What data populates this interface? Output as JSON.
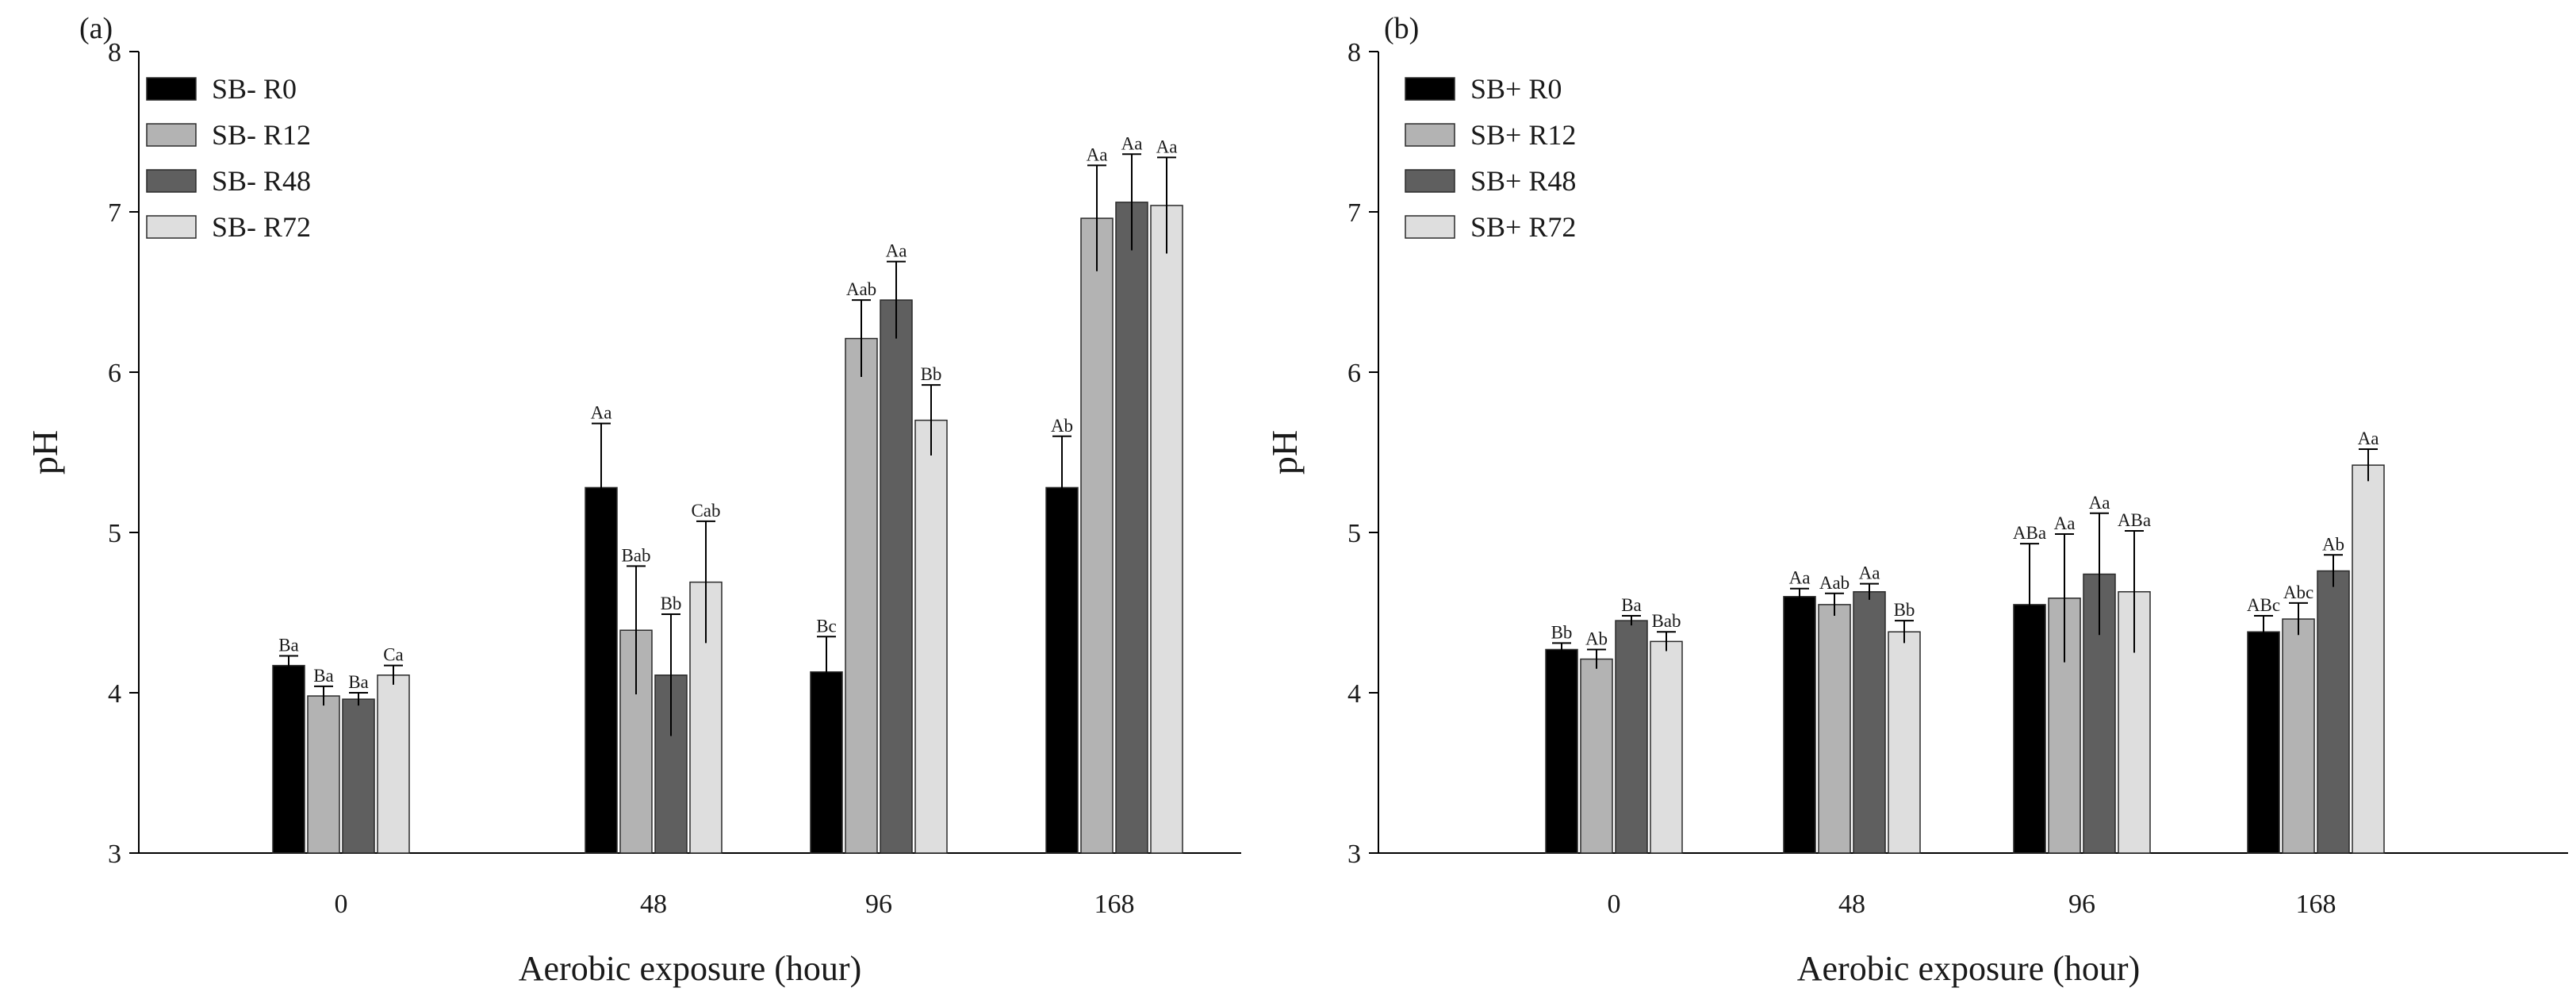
{
  "chart_data": [
    {
      "type": "bar",
      "panel_label": "(a)",
      "xlabel": "Aerobic exposure (hour)",
      "ylabel": "pH",
      "ylim": [
        3,
        8
      ],
      "yticks": [
        "3",
        "4",
        "5",
        "6",
        "7",
        "8"
      ],
      "categories": [
        "0",
        "48",
        "96",
        "168"
      ],
      "legend_position": "top-left",
      "series": [
        {
          "name": "SB- R0",
          "color": "#000000",
          "values": [
            4.17,
            5.28,
            4.13,
            5.28
          ],
          "errors": [
            0.06,
            0.4,
            0.22,
            0.32
          ],
          "labels": [
            "Ba",
            "Aa",
            "Bc",
            "Ab"
          ]
        },
        {
          "name": "SB- R12",
          "color": "#b3b3b3",
          "values": [
            3.98,
            4.39,
            6.21,
            6.96
          ],
          "errors": [
            0.06,
            0.4,
            0.24,
            0.33
          ],
          "labels": [
            "Ba",
            "Bab",
            "Aab",
            "Aa"
          ]
        },
        {
          "name": "SB- R48",
          "color": "#5f5f5f",
          "values": [
            3.96,
            4.11,
            6.45,
            7.06
          ],
          "errors": [
            0.04,
            0.38,
            0.24,
            0.3
          ],
          "labels": [
            "Ba",
            "Bb",
            "Aa",
            "Aa"
          ]
        },
        {
          "name": "SB- R72",
          "color": "#dedede",
          "values": [
            4.11,
            4.69,
            5.7,
            7.04
          ],
          "errors": [
            0.06,
            0.38,
            0.22,
            0.3
          ],
          "labels": [
            "Ca",
            "Cab",
            "Bb",
            "Aa"
          ]
        }
      ]
    },
    {
      "type": "bar",
      "panel_label": "(b)",
      "xlabel": "Aerobic exposure (hour)",
      "ylabel": "pH",
      "ylim": [
        3,
        8
      ],
      "yticks": [
        "3",
        "4",
        "5",
        "6",
        "7",
        "8"
      ],
      "categories": [
        "0",
        "48",
        "96",
        "168"
      ],
      "legend_position": "top-left",
      "series": [
        {
          "name": "SB+ R0",
          "color": "#000000",
          "values": [
            4.27,
            4.6,
            4.55,
            4.38
          ],
          "errors": [
            0.04,
            0.05,
            0.38,
            0.1
          ],
          "labels": [
            "Bb",
            "Aa",
            "ABa",
            "ABc"
          ]
        },
        {
          "name": "SB+ R12",
          "color": "#b3b3b3",
          "values": [
            4.21,
            4.55,
            4.59,
            4.46
          ],
          "errors": [
            0.06,
            0.07,
            0.4,
            0.1
          ],
          "labels": [
            "Ab",
            "Aab",
            "Aa",
            "Abc"
          ]
        },
        {
          "name": "SB+ R48",
          "color": "#5f5f5f",
          "values": [
            4.45,
            4.63,
            4.74,
            4.76
          ],
          "errors": [
            0.03,
            0.05,
            0.38,
            0.1
          ],
          "labels": [
            "Ba",
            "Aa",
            "Aa",
            "Ab"
          ]
        },
        {
          "name": "SB+ R72",
          "color": "#dedede",
          "values": [
            4.32,
            4.38,
            4.63,
            5.42
          ],
          "errors": [
            0.06,
            0.07,
            0.38,
            0.1
          ],
          "labels": [
            "Bab",
            "Bb",
            "ABa",
            "Aa"
          ]
        }
      ]
    }
  ]
}
